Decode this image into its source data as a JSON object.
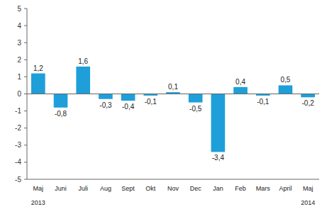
{
  "chart_data": {
    "type": "bar",
    "categories": [
      "Maj",
      "Juni",
      "Juli",
      "Aug",
      "Sept",
      "Okt",
      "Nov",
      "Dec",
      "Jan",
      "Feb",
      "Mars",
      "April",
      "Maj"
    ],
    "values": [
      1.2,
      -0.8,
      1.6,
      -0.3,
      -0.4,
      -0.1,
      0.1,
      -0.5,
      -3.4,
      0.4,
      -0.1,
      0.5,
      -0.2
    ],
    "value_labels": [
      "1,2",
      "-0,8",
      "1,6",
      "-0,3",
      "-0,4",
      "-0,1",
      "0,1",
      "-0,5",
      "-3,4",
      "0,4",
      "-0,1",
      "0,5",
      "-0,2"
    ],
    "annotations": [
      "2013",
      "2014"
    ],
    "color": "#1e9fd9",
    "ylim": [
      -5,
      5
    ],
    "yticks": [
      -5,
      -4,
      -3,
      -2,
      -1,
      0,
      1,
      2,
      3,
      4,
      5
    ],
    "grid": false,
    "data_labels": true
  }
}
